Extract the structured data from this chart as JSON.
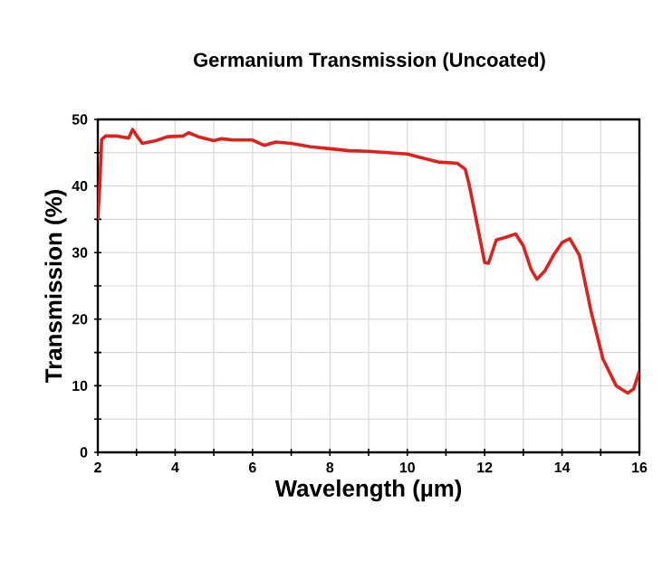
{
  "chart_data": {
    "type": "line",
    "title": "Germanium Transmission (Uncoated)",
    "xlabel": "Wavelength (µm)",
    "ylabel": "Transmission (%)",
    "xlim": [
      2,
      16
    ],
    "ylim": [
      0,
      50
    ],
    "xticks": [
      2,
      {
        "value": 3,
        "label": null
      },
      4,
      {
        "value": 5,
        "label": null
      },
      6,
      {
        "value": 7,
        "label": null
      },
      8,
      {
        "value": 9,
        "label": null
      },
      10,
      {
        "value": 11,
        "label": null
      },
      12,
      {
        "value": 13,
        "label": null
      },
      14,
      {
        "value": 15,
        "label": null
      },
      16
    ],
    "yticks": [
      0,
      {
        "value": 5,
        "label": null
      },
      10,
      {
        "value": 15,
        "label": null
      },
      20,
      {
        "value": 25,
        "label": null
      },
      30,
      {
        "value": 35,
        "label": null
      },
      40,
      {
        "value": 45,
        "label": null
      },
      50
    ],
    "grid": true,
    "series": [
      {
        "color": "#e0201b",
        "x": [
          2.0,
          2.05,
          2.1,
          2.2,
          2.5,
          2.8,
          2.9,
          3.0,
          3.15,
          3.5,
          3.8,
          4.2,
          4.35,
          4.6,
          5.0,
          5.2,
          5.5,
          6.0,
          6.3,
          6.6,
          7.0,
          7.5,
          8.0,
          8.5,
          9.0,
          9.5,
          10.0,
          10.4,
          10.8,
          11.3,
          11.5,
          11.6,
          11.85,
          12.0,
          12.1,
          12.3,
          12.55,
          12.8,
          13.0,
          13.2,
          13.35,
          13.55,
          13.8,
          14.0,
          14.2,
          14.45,
          14.75,
          15.06,
          15.4,
          15.7,
          15.85,
          16.0
        ],
        "values": [
          34.9,
          40,
          47,
          47.5,
          47.5,
          47.2,
          48.5,
          47.6,
          46.4,
          46.8,
          47.4,
          47.5,
          48,
          47.4,
          46.8,
          47.1,
          46.9,
          46.9,
          46.1,
          46.6,
          46.4,
          45.9,
          45.6,
          45.3,
          45.2,
          45.0,
          44.8,
          44.2,
          43.6,
          43.4,
          42.5,
          40.2,
          33,
          28.5,
          28.4,
          31.9,
          32.3,
          32.8,
          31,
          27.5,
          26,
          27.2,
          29.8,
          31.5,
          32.1,
          29.6,
          21.2,
          14,
          10,
          8.9,
          9.5,
          12.2
        ]
      }
    ]
  }
}
